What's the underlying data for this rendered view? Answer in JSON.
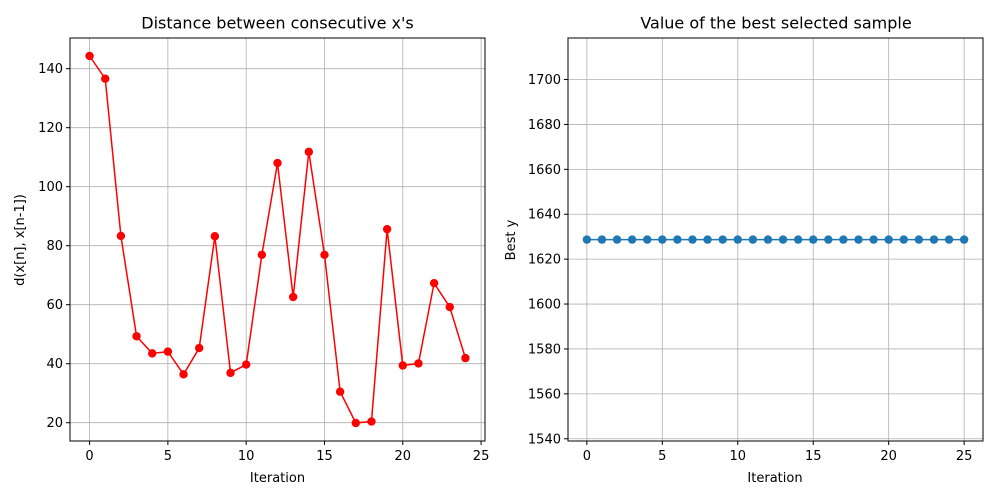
{
  "chart_data": [
    {
      "type": "line",
      "title": "Distance between consecutive x's",
      "xlabel": "Iteration",
      "ylabel": "d(x[n], x[n-1])",
      "xlim": [
        -1.25,
        25.25
      ],
      "ylim": [
        13.8,
        150.4
      ],
      "xticks": [
        0,
        5,
        10,
        15,
        20,
        25
      ],
      "yticks": [
        20,
        40,
        60,
        80,
        100,
        120,
        140
      ],
      "grid": true,
      "series": [
        {
          "color": "#ff0000",
          "marker": "circle",
          "x": [
            0,
            1,
            2,
            3,
            4,
            5,
            6,
            7,
            8,
            9,
            10,
            11,
            12,
            13,
            14,
            15,
            16,
            17,
            18,
            19,
            20,
            21,
            22,
            23,
            24
          ],
          "values": [
            144.3,
            136.6,
            83.3,
            49.3,
            43.5,
            44.1,
            36.4,
            45.3,
            83.2,
            36.9,
            39.7,
            76.9,
            108.0,
            62.6,
            111.8,
            76.9,
            30.5,
            19.9,
            20.4,
            85.6,
            39.4,
            40.1,
            67.3,
            59.2,
            41.9
          ]
        }
      ]
    },
    {
      "type": "line",
      "title": "Value of the best selected sample",
      "xlabel": "Iteration",
      "ylabel": "Best y",
      "xlim": [
        -1.25,
        26.25
      ],
      "ylim": [
        1539,
        1718.5
      ],
      "xticks": [
        0,
        5,
        10,
        15,
        20,
        25
      ],
      "yticks": [
        1540,
        1560,
        1580,
        1600,
        1620,
        1640,
        1660,
        1680,
        1700
      ],
      "grid": true,
      "series": [
        {
          "color": "#1f77b4",
          "marker": "circle",
          "x": [
            0,
            1,
            2,
            3,
            4,
            5,
            6,
            7,
            8,
            9,
            10,
            11,
            12,
            13,
            14,
            15,
            16,
            17,
            18,
            19,
            20,
            21,
            22,
            23,
            24,
            25
          ],
          "values": [
            1628.7,
            1628.7,
            1628.7,
            1628.7,
            1628.7,
            1628.7,
            1628.7,
            1628.7,
            1628.7,
            1628.7,
            1628.7,
            1628.7,
            1628.7,
            1628.7,
            1628.7,
            1628.7,
            1628.7,
            1628.7,
            1628.7,
            1628.7,
            1628.7,
            1628.7,
            1628.7,
            1628.7,
            1628.7,
            1628.7
          ]
        }
      ]
    }
  ]
}
